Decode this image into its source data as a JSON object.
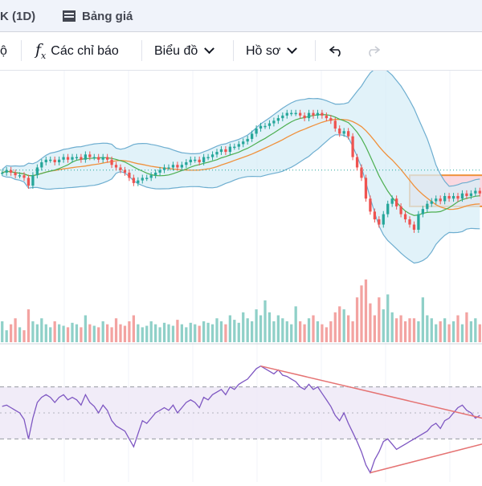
{
  "tabs": {
    "active": "K (1D)",
    "second": "Bảng giá"
  },
  "toolbar": {
    "partial_label": "ộ",
    "indicators": "Các chỉ báo",
    "chart_type": "Biểu đồ",
    "profile": "Hồ sơ"
  },
  "icons": [
    "table-icon",
    "fx-icon",
    "chevron-down-icon",
    "undo-icon",
    "redo-icon"
  ],
  "colors": {
    "up": "#26a69a",
    "down": "#ef5350",
    "bb_fill": "#d7eef7",
    "bb_line": "#6eaed0",
    "ma_orange": "#f0913c",
    "ma_green": "#4caf50",
    "rsi_line": "#7e57c2",
    "rsi_fill": "#ede7f6",
    "trendline": "#e57373",
    "box_fill": "#f8c9d4",
    "box_border": "#f0913c"
  },
  "chart_data": [
    {
      "type": "candlestick",
      "close": [
        40,
        41,
        40,
        39,
        39,
        38,
        35,
        39,
        42,
        44,
        45,
        45,
        44,
        45,
        46,
        45,
        46,
        46,
        45,
        47,
        46,
        46,
        45,
        46,
        45,
        43,
        42,
        41,
        40,
        38,
        36,
        37,
        38,
        38,
        39,
        40,
        41,
        42,
        42,
        43,
        42,
        43,
        44,
        45,
        45,
        44,
        46,
        46,
        47,
        48,
        49,
        48,
        50,
        50,
        51,
        52,
        53,
        55,
        57,
        58,
        58,
        59,
        60,
        61,
        62,
        63,
        63,
        63,
        62,
        61,
        63,
        62,
        63,
        62,
        61,
        60,
        57,
        55,
        56,
        54,
        46,
        42,
        38,
        30,
        25,
        22,
        20,
        24,
        28,
        30,
        27,
        24,
        22,
        20,
        18,
        24,
        26,
        28,
        29,
        30,
        29,
        31,
        30,
        31,
        30,
        32,
        31,
        32,
        33,
        32
      ],
      "volume": [
        14,
        8,
        12,
        16,
        10,
        8,
        22,
        14,
        12,
        16,
        12,
        10,
        14,
        12,
        11,
        10,
        13,
        12,
        10,
        18,
        12,
        11,
        10,
        14,
        12,
        10,
        16,
        12,
        11,
        14,
        18,
        12,
        10,
        11,
        14,
        12,
        10,
        13,
        12,
        11,
        15,
        12,
        10,
        13,
        12,
        11,
        14,
        13,
        12,
        16,
        14,
        12,
        18,
        15,
        13,
        20,
        16,
        14,
        22,
        18,
        28,
        20,
        14,
        18,
        16,
        14,
        12,
        24,
        14,
        12,
        16,
        18,
        14,
        12,
        10,
        14,
        20,
        24,
        22,
        18,
        14,
        30,
        38,
        42,
        26,
        18,
        30,
        22,
        32,
        20,
        16,
        18,
        14,
        16,
        16,
        14,
        30,
        18,
        16,
        12,
        14,
        16,
        12,
        14,
        18,
        12,
        20,
        14,
        16,
        12
      ],
      "rsi": [
        55,
        56,
        54,
        52,
        50,
        45,
        30,
        46,
        58,
        62,
        64,
        62,
        58,
        62,
        64,
        60,
        62,
        60,
        56,
        64,
        58,
        55,
        50,
        56,
        52,
        44,
        40,
        38,
        36,
        30,
        24,
        34,
        44,
        42,
        46,
        50,
        52,
        54,
        52,
        56,
        50,
        54,
        58,
        60,
        58,
        54,
        62,
        60,
        64,
        66,
        68,
        64,
        70,
        68,
        72,
        74,
        76,
        80,
        84,
        86,
        84,
        82,
        80,
        83,
        79,
        78,
        76,
        74,
        70,
        68,
        72,
        68,
        70,
        65,
        60,
        55,
        48,
        44,
        50,
        42,
        35,
        28,
        20,
        10,
        4,
        14,
        20,
        28,
        30,
        26,
        22,
        24,
        26,
        28,
        30,
        32,
        34,
        36,
        40,
        42,
        38,
        44,
        46,
        50,
        54,
        56,
        52,
        50,
        46,
        48
      ]
    }
  ]
}
